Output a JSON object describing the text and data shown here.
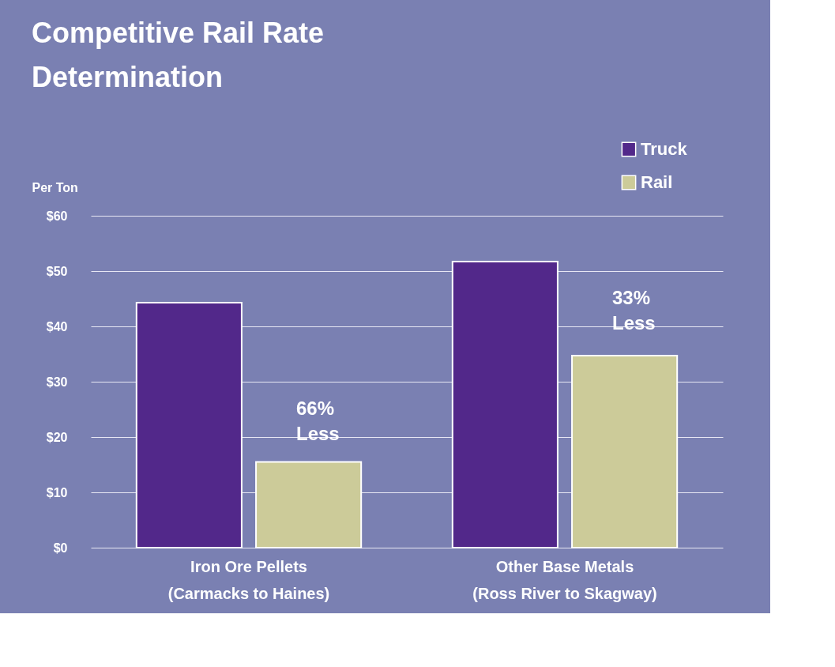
{
  "chart_data": {
    "type": "bar",
    "title": "Competitive Rail Rate\nDetermination",
    "ylabel": "Per Ton",
    "categories": [
      "Iron Ore Pellets\n(Carmacks to Haines)",
      "Other Base Metals\n(Ross River to Skagway)"
    ],
    "series": [
      {
        "name": "Truck",
        "color": "#52288a",
        "values": [
          44.3,
          51.7
        ]
      },
      {
        "name": "Rail",
        "color": "#cccb99",
        "values": [
          15.5,
          34.7
        ]
      }
    ],
    "ylim": [
      0,
      60
    ],
    "yticks": [
      {
        "value": 0,
        "label": "$0"
      },
      {
        "value": 10,
        "label": "$10"
      },
      {
        "value": 20,
        "label": "$20"
      },
      {
        "value": 30,
        "label": "$30"
      },
      {
        "value": 40,
        "label": "$40"
      },
      {
        "value": 50,
        "label": "$50"
      },
      {
        "value": 60,
        "label": "$60"
      }
    ],
    "annotations": [
      "66%\nLess",
      "33%\nLess"
    ],
    "grid": "y",
    "legend": "top right"
  }
}
